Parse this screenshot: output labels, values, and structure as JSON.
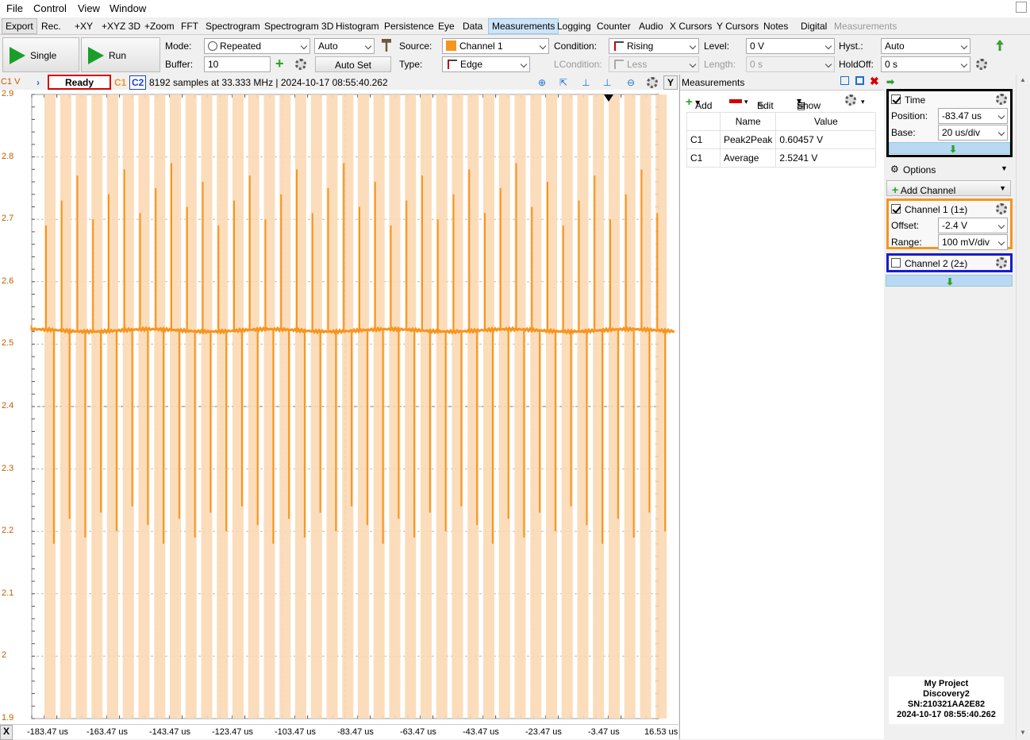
{
  "menu": [
    "File",
    "Control",
    "View",
    "Window"
  ],
  "tabs": [
    "Export",
    "Rec.",
    "+XY",
    "+XYZ 3D",
    "+Zoom",
    "FFT",
    "Spectrogram",
    "Spectrogram 3D",
    "Histogram",
    "Persistence",
    "Eye",
    "Data",
    "Measurements",
    "Logging",
    "Counter",
    "Audio",
    "X Cursors",
    "Y Cursors",
    "Notes",
    "Digital",
    "Measurements"
  ],
  "toolbar": {
    "single": "Single",
    "run": "Run",
    "mode_label": "Mode:",
    "mode_value": "Repeated",
    "auto_value": "Auto",
    "buffer_label": "Buffer:",
    "buffer_value": "10",
    "autoset": "Auto Set",
    "source_label": "Source:",
    "source_value": "Channel 1",
    "type_label": "Type:",
    "type_value": "Edge",
    "condition_label": "Condition:",
    "condition_value": "Rising",
    "lcondition_label": "LCondition:",
    "lcondition_value": "Less",
    "level_label": "Level:",
    "level_value": "0 V",
    "length_label": "Length:",
    "length_value": "0 s",
    "hyst_label": "Hyst.:",
    "hyst_value": "Auto",
    "holdoff_label": "HoldOff:",
    "holdoff_value": "0 s"
  },
  "plot": {
    "channel_label": "C1 V",
    "status": "Ready",
    "c1": "C1",
    "c2": "C2",
    "info": "8192 samples at 33.333 MHz | 2024-10-17 08:55:40.262",
    "y_btn": "Y",
    "y_ticks": [
      "2.9",
      "2.8",
      "2.7",
      "2.6",
      "2.5",
      "2.4",
      "2.3",
      "2.2",
      "2.1",
      "2",
      "1.9"
    ],
    "x_btn": "X",
    "x_ticks": [
      "-183.47 us",
      "-163.47 us",
      "-143.47 us",
      "-123.47 us",
      "-103.47 us",
      "-83.47 us",
      "-63.47 us",
      "-43.47 us",
      "-23.47 us",
      "-3.47 us",
      "16.53 us"
    ],
    "trace_color": "#f7941d",
    "envelope_color": "#fbd9b4"
  },
  "measurements": {
    "title": "Measurements",
    "add": "Add",
    "edit": "Edit",
    "show": "Show",
    "col_name": "Name",
    "col_value": "Value",
    "rows": [
      {
        "ch": "C1",
        "name": "Peak2Peak",
        "value": "0.60457 V"
      },
      {
        "ch": "C1",
        "name": "Average",
        "value": "2.5241 V"
      }
    ]
  },
  "right": {
    "time_label": "Time",
    "position_label": "Position:",
    "position_value": "-83.47 us",
    "base_label": "Base:",
    "base_value": "20 us/div",
    "options": "Options",
    "add_channel": "Add Channel",
    "ch1_label": "Channel 1 (1±)",
    "offset_label": "Offset:",
    "offset_value": "-2.4 V",
    "range_label": "Range:",
    "range_value": "100 mV/div",
    "ch2_label": "Channel 2 (2±)",
    "device": {
      "project": "My Project",
      "name": "Discovery2",
      "sn": "SN:210321AA2E82",
      "time": "2024-10-17 08:55:40.262"
    }
  }
}
